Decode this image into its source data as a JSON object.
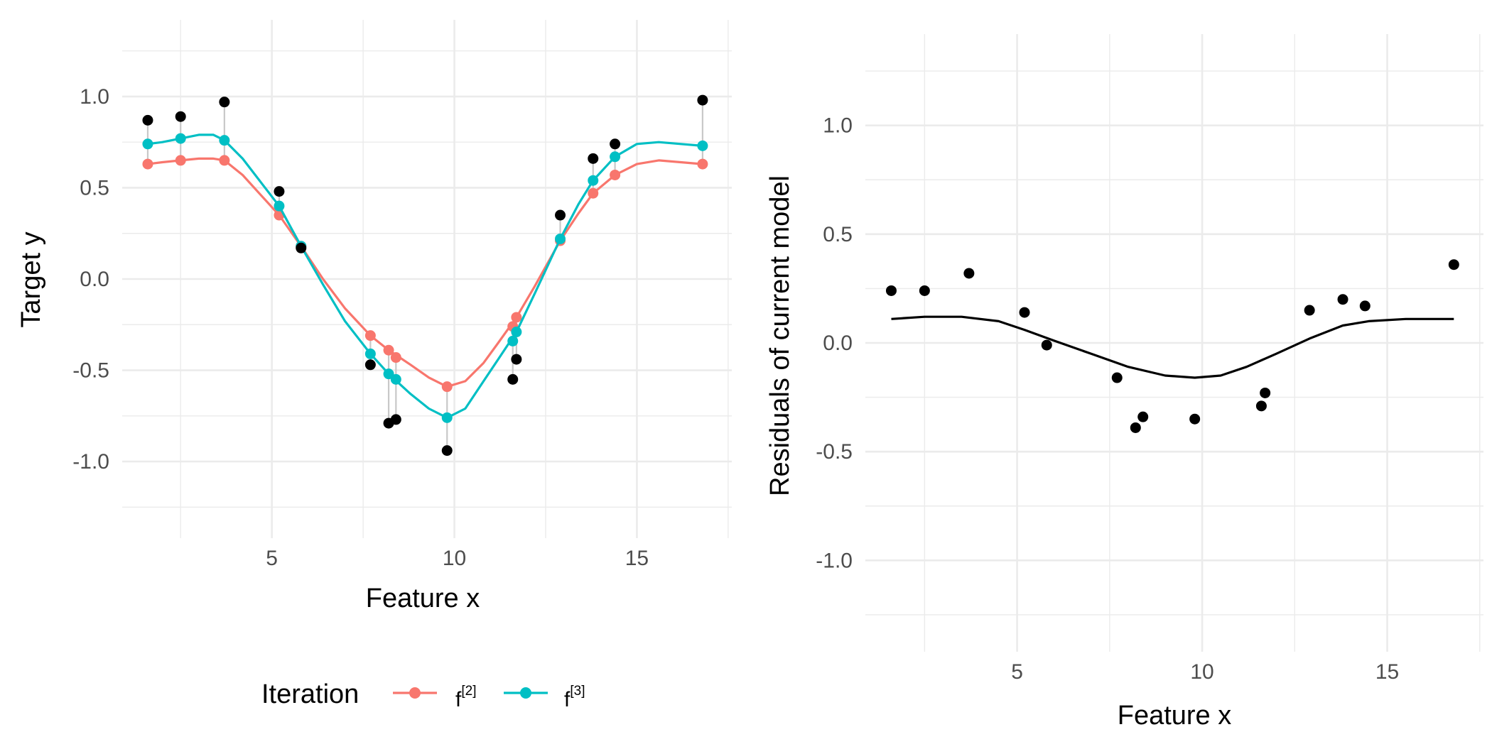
{
  "chart_data": [
    {
      "type": "line",
      "xlabel": "Feature x",
      "ylabel": "Target y",
      "xlim": [
        0.9,
        17.6
      ],
      "ylim": [
        -1.42,
        1.42
      ],
      "xticks": [
        5,
        10,
        15
      ],
      "xtick_labels": [
        "5",
        "10",
        "15"
      ],
      "yticks": [
        -1.0,
        -0.5,
        0.0,
        0.5,
        1.0
      ],
      "ytick_labels": [
        "-1.0",
        "-0.5",
        "0.0",
        "0.5",
        "1.0"
      ],
      "grid": true,
      "legend": {
        "title": "Iteration",
        "placement": "bottom",
        "entries": [
          {
            "base": "f",
            "sup": "[2]",
            "color": "#F8766D"
          },
          {
            "base": "f",
            "sup": "[3]",
            "color": "#00BFC4"
          }
        ]
      },
      "observed_points": {
        "color": "#000000",
        "x": [
          1.6,
          2.5,
          3.7,
          5.2,
          5.8,
          7.7,
          8.2,
          8.4,
          9.8,
          11.6,
          11.7,
          12.9,
          13.8,
          14.4,
          16.8
        ],
        "y": [
          0.87,
          0.89,
          0.97,
          0.48,
          0.17,
          -0.47,
          -0.79,
          -0.77,
          -0.94,
          -0.55,
          -0.44,
          0.35,
          0.66,
          0.74,
          0.98
        ]
      },
      "series": [
        {
          "name": "f[2]",
          "color": "#F8766D",
          "points_x": [
            1.6,
            2.5,
            3.7,
            5.2,
            5.8,
            7.7,
            8.2,
            8.4,
            9.8,
            11.6,
            11.7,
            12.9,
            13.8,
            14.4,
            16.8
          ],
          "points_y": [
            0.63,
            0.65,
            0.65,
            0.35,
            0.18,
            -0.31,
            -0.39,
            -0.43,
            -0.59,
            -0.26,
            -0.21,
            0.21,
            0.47,
            0.57,
            0.63
          ],
          "curve_x": [
            1.6,
            2.0,
            2.5,
            3.0,
            3.4,
            3.7,
            4.2,
            4.7,
            5.2,
            5.8,
            6.4,
            7.0,
            7.7,
            8.2,
            8.8,
            9.3,
            9.8,
            10.3,
            10.8,
            11.2,
            11.7,
            12.2,
            12.9,
            13.4,
            13.8,
            14.4,
            15.0,
            15.6,
            16.2,
            16.8
          ],
          "curve_y": [
            0.63,
            0.64,
            0.65,
            0.66,
            0.66,
            0.65,
            0.57,
            0.46,
            0.35,
            0.18,
            0.0,
            -0.16,
            -0.31,
            -0.39,
            -0.47,
            -0.54,
            -0.59,
            -0.56,
            -0.46,
            -0.35,
            -0.21,
            -0.04,
            0.21,
            0.36,
            0.47,
            0.57,
            0.63,
            0.65,
            0.64,
            0.63
          ]
        },
        {
          "name": "f[3]",
          "color": "#00BFC4",
          "points_x": [
            1.6,
            2.5,
            3.7,
            5.2,
            5.8,
            7.7,
            8.2,
            8.4,
            9.8,
            11.6,
            11.7,
            12.9,
            13.8,
            14.4,
            16.8
          ],
          "points_y": [
            0.74,
            0.77,
            0.76,
            0.4,
            0.18,
            -0.41,
            -0.52,
            -0.55,
            -0.76,
            -0.34,
            -0.29,
            0.22,
            0.54,
            0.67,
            0.73
          ],
          "curve_x": [
            1.6,
            2.0,
            2.5,
            3.0,
            3.4,
            3.7,
            4.2,
            4.7,
            5.2,
            5.8,
            6.4,
            7.0,
            7.7,
            8.2,
            8.8,
            9.3,
            9.8,
            10.3,
            10.8,
            11.2,
            11.7,
            12.2,
            12.9,
            13.4,
            13.8,
            14.4,
            15.0,
            15.6,
            16.2,
            16.8
          ],
          "curve_y": [
            0.74,
            0.75,
            0.77,
            0.79,
            0.79,
            0.76,
            0.66,
            0.53,
            0.4,
            0.18,
            -0.03,
            -0.23,
            -0.41,
            -0.52,
            -0.63,
            -0.71,
            -0.76,
            -0.71,
            -0.56,
            -0.44,
            -0.29,
            -0.08,
            0.22,
            0.41,
            0.54,
            0.67,
            0.74,
            0.75,
            0.74,
            0.73
          ]
        }
      ],
      "residual_segments": {
        "color": "#c8c8c8",
        "x": [
          1.6,
          2.5,
          3.7,
          5.2,
          5.8,
          7.7,
          8.2,
          8.4,
          9.8,
          11.6,
          11.7,
          12.9,
          13.8,
          14.4,
          16.8
        ],
        "y_from": [
          0.63,
          0.65,
          0.65,
          0.35,
          0.18,
          -0.31,
          -0.39,
          -0.43,
          -0.59,
          -0.26,
          -0.21,
          0.21,
          0.47,
          0.57,
          0.63
        ],
        "y_to": [
          0.87,
          0.89,
          0.97,
          0.48,
          0.17,
          -0.47,
          -0.79,
          -0.77,
          -0.94,
          -0.55,
          -0.44,
          0.35,
          0.66,
          0.74,
          0.98
        ]
      }
    },
    {
      "type": "scatter",
      "xlabel": "Feature x",
      "ylabel": "Residuals of current model",
      "xlim": [
        0.9,
        17.6
      ],
      "ylim": [
        -1.42,
        1.42
      ],
      "xticks": [
        5,
        10,
        15
      ],
      "xtick_labels": [
        "5",
        "10",
        "15"
      ],
      "yticks": [
        -1.0,
        -0.5,
        0.0,
        0.5,
        1.0
      ],
      "ytick_labels": [
        "-1.0",
        "-0.5",
        "0.0",
        "0.5",
        "1.0"
      ],
      "grid": true,
      "points": {
        "color": "#000000",
        "x": [
          1.6,
          2.5,
          3.7,
          5.2,
          5.8,
          7.7,
          8.2,
          8.4,
          9.8,
          11.6,
          11.7,
          12.9,
          13.8,
          14.4,
          16.8
        ],
        "y": [
          0.24,
          0.24,
          0.32,
          0.14,
          -0.01,
          -0.16,
          -0.39,
          -0.34,
          -0.35,
          -0.29,
          -0.23,
          0.15,
          0.2,
          0.17,
          0.36
        ]
      },
      "fit_line": {
        "color": "#000000",
        "x": [
          1.6,
          2.5,
          3.5,
          4.5,
          5.2,
          6.0,
          7.0,
          8.0,
          9.0,
          9.8,
          10.5,
          11.2,
          12.0,
          12.9,
          13.8,
          14.5,
          15.5,
          16.8
        ],
        "y": [
          0.11,
          0.12,
          0.12,
          0.1,
          0.06,
          0.01,
          -0.05,
          -0.11,
          -0.15,
          -0.16,
          -0.15,
          -0.11,
          -0.05,
          0.02,
          0.08,
          0.1,
          0.11,
          0.11
        ]
      }
    }
  ]
}
